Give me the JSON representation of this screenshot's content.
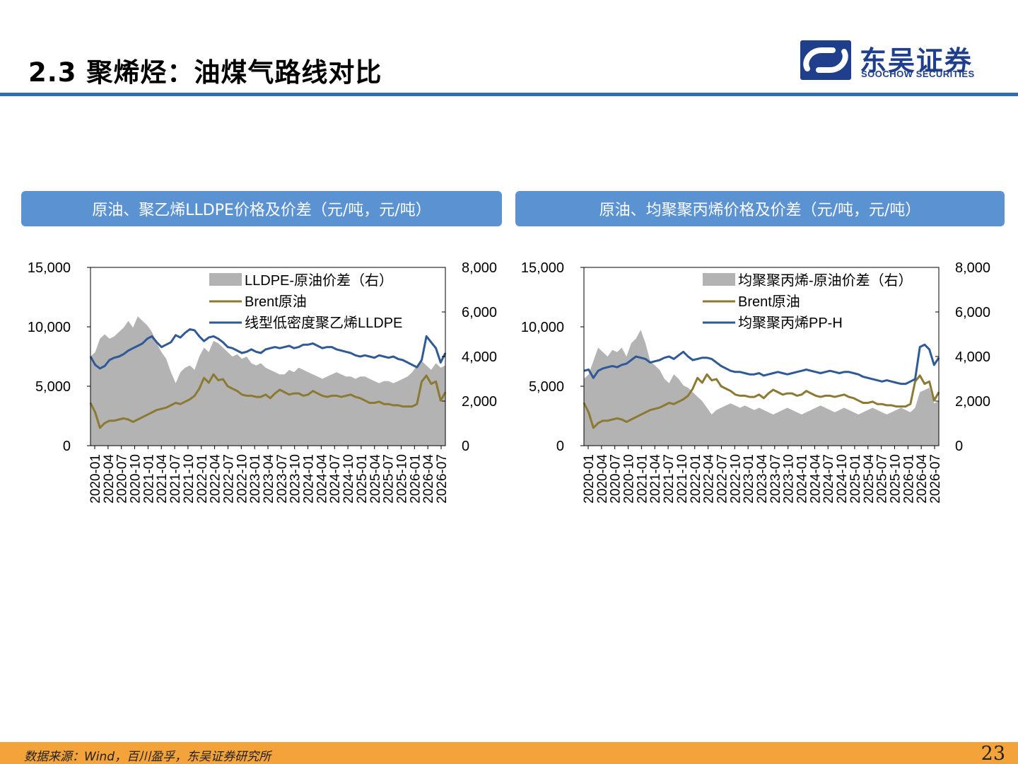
{
  "slide": {
    "title": "2.3 聚烯烃：油煤气路线对比",
    "logo_cn": "东吴证券",
    "logo_en": "SOOCHOW SECURITIES",
    "source": "数据来源：Wind，百川盈孚，东吴证券研究所",
    "page_number": "23",
    "colors": {
      "header_rule": "#2f6db5",
      "banner": "#5b92d2",
      "footer": "#f4a23a",
      "logo": "#1f3f8c"
    }
  },
  "chart_data": [
    {
      "type": "line",
      "title": "原油、聚乙烯LLDPE价格及价差（元/吨，元/吨）",
      "x_tick_labels": [
        "2020-01",
        "2020-04",
        "2020-07",
        "2020-10",
        "2021-01",
        "2021-04",
        "2021-07",
        "2021-10",
        "2022-01",
        "2022-04",
        "2022-07",
        "2022-10",
        "2023-01",
        "2023-04",
        "2023-07",
        "2023-10",
        "2024-01",
        "2024-04",
        "2024-07",
        "2024-10",
        "2025-01",
        "2025-04",
        "2025-07",
        "2025-10",
        "2026-01",
        "2026-04",
        "2026-07"
      ],
      "y_left_ticks": [
        "0",
        "5,000",
        "10,000",
        "15,000"
      ],
      "y_right_ticks": [
        "0",
        "2,000",
        "4,000",
        "6,000",
        "8,000"
      ],
      "ylim_left": [
        0,
        15000
      ],
      "ylim_right": [
        0,
        8000
      ],
      "legend_position": "top-right",
      "grid": false,
      "series": [
        {
          "name": "LLDPE-原油价差（右）",
          "kind": "area",
          "axis": "right",
          "color": "#b3b3b3",
          "values": [
            4000,
            4200,
            4800,
            5000,
            4800,
            4900,
            5100,
            5300,
            5600,
            5300,
            5800,
            5600,
            5400,
            5100,
            4600,
            4200,
            3900,
            3300,
            2800,
            3300,
            3500,
            3600,
            3400,
            4000,
            4400,
            4200,
            4700,
            4600,
            4400,
            4200,
            4000,
            4100,
            3900,
            4000,
            3700,
            3600,
            3700,
            3500,
            3400,
            3300,
            3200,
            3200,
            3400,
            3300,
            3500,
            3400,
            3300,
            3200,
            3100,
            3000,
            3100,
            3200,
            3300,
            3200,
            3100,
            3100,
            3000,
            3100,
            3100,
            3000,
            2900,
            2800,
            2900,
            2900,
            2800,
            2900,
            3000,
            3100,
            3300,
            3600,
            3800,
            3600,
            3400,
            3700,
            3500,
            3600
          ]
        },
        {
          "name": "Brent原油",
          "kind": "line",
          "axis": "left",
          "color": "#8c7a34",
          "values": [
            3600,
            2800,
            1500,
            1900,
            2100,
            2100,
            2200,
            2300,
            2200,
            2000,
            2200,
            2400,
            2600,
            2800,
            3000,
            3100,
            3200,
            3400,
            3600,
            3500,
            3700,
            3900,
            4200,
            4800,
            5700,
            5300,
            6000,
            5500,
            5600,
            5000,
            4800,
            4600,
            4300,
            4200,
            4200,
            4100,
            4100,
            4300,
            4000,
            4400,
            4700,
            4500,
            4300,
            4400,
            4400,
            4200,
            4300,
            4600,
            4400,
            4200,
            4100,
            4200,
            4200,
            4100,
            4200,
            4300,
            4100,
            4000,
            3800,
            3600,
            3600,
            3700,
            3500,
            3500,
            3400,
            3400,
            3300,
            3300,
            3300,
            3500,
            5400,
            5900,
            5200,
            5400,
            3800,
            4500
          ]
        },
        {
          "name": "线型低密度聚乙烯LLDPE",
          "kind": "line",
          "axis": "left",
          "color": "#2f5a97",
          "values": [
            7500,
            6800,
            6500,
            6700,
            7200,
            7400,
            7500,
            7700,
            8000,
            8200,
            8400,
            8600,
            9000,
            9200,
            8700,
            8300,
            8500,
            8700,
            9300,
            9100,
            9500,
            9800,
            9700,
            9200,
            8800,
            9100,
            9200,
            9000,
            8700,
            8300,
            8200,
            8000,
            7800,
            7900,
            8100,
            7900,
            7800,
            8100,
            8200,
            8300,
            8200,
            8300,
            8400,
            8200,
            8300,
            8500,
            8500,
            8600,
            8400,
            8200,
            8300,
            8300,
            8100,
            8000,
            7900,
            7800,
            7600,
            7500,
            7600,
            7500,
            7400,
            7600,
            7500,
            7400,
            7500,
            7300,
            7200,
            7000,
            6800,
            6600,
            7200,
            9200,
            8700,
            8200,
            7000,
            7800
          ]
        }
      ]
    },
    {
      "type": "line",
      "title": "原油、均聚聚丙烯价格及价差（元/吨，元/吨）",
      "x_tick_labels": [
        "2020-01",
        "2020-04",
        "2020-07",
        "2020-10",
        "2021-01",
        "2021-04",
        "2021-07",
        "2021-10",
        "2022-01",
        "2022-04",
        "2022-07",
        "2022-10",
        "2023-01",
        "2023-04",
        "2023-07",
        "2023-10",
        "2024-01",
        "2024-04",
        "2024-07",
        "2024-10",
        "2025-01",
        "2025-04",
        "2025-07",
        "2025-10",
        "2026-01",
        "2026-04",
        "2026-07"
      ],
      "y_left_ticks": [
        "0",
        "5,000",
        "10,000",
        "15,000"
      ],
      "y_right_ticks": [
        "0",
        "2,000",
        "4,000",
        "6,000",
        "8,000"
      ],
      "ylim_left": [
        0,
        15000
      ],
      "ylim_right": [
        0,
        8000
      ],
      "legend_position": "top-right",
      "grid": false,
      "series": [
        {
          "name": "均聚聚丙烯-原油价差（右）",
          "kind": "area",
          "axis": "right",
          "color": "#b3b3b3",
          "values": [
            3000,
            3200,
            3800,
            4400,
            4200,
            4000,
            4300,
            4200,
            4400,
            4000,
            4600,
            4800,
            5200,
            4600,
            3800,
            3600,
            3400,
            3000,
            2800,
            3200,
            3000,
            2700,
            2600,
            2400,
            2200,
            2000,
            1700,
            1400,
            1600,
            1700,
            1800,
            1900,
            1800,
            1700,
            1800,
            1700,
            1600,
            1700,
            1600,
            1500,
            1400,
            1500,
            1600,
            1700,
            1600,
            1500,
            1400,
            1500,
            1600,
            1700,
            1800,
            1700,
            1600,
            1500,
            1600,
            1700,
            1600,
            1500,
            1400,
            1500,
            1600,
            1700,
            1600,
            1500,
            1400,
            1500,
            1600,
            1700,
            1600,
            1500,
            1700,
            2400,
            2500,
            2600,
            1900,
            2000
          ]
        },
        {
          "name": "Brent原油",
          "kind": "line",
          "axis": "left",
          "color": "#8c7a34",
          "values": [
            3600,
            2800,
            1500,
            1900,
            2100,
            2100,
            2200,
            2300,
            2200,
            2000,
            2200,
            2400,
            2600,
            2800,
            3000,
            3100,
            3200,
            3400,
            3600,
            3500,
            3700,
            3900,
            4200,
            4800,
            5700,
            5300,
            6000,
            5500,
            5600,
            5000,
            4800,
            4600,
            4300,
            4200,
            4200,
            4100,
            4100,
            4300,
            4000,
            4400,
            4700,
            4500,
            4300,
            4400,
            4400,
            4200,
            4300,
            4600,
            4400,
            4200,
            4100,
            4200,
            4200,
            4100,
            4200,
            4300,
            4100,
            4000,
            3800,
            3600,
            3600,
            3700,
            3500,
            3500,
            3400,
            3400,
            3300,
            3300,
            3300,
            3500,
            5400,
            5900,
            5200,
            5400,
            3800,
            4500
          ]
        },
        {
          "name": "均聚聚丙烯PP-H",
          "kind": "line",
          "axis": "left",
          "color": "#2f5a97",
          "values": [
            6300,
            6400,
            5700,
            6300,
            6500,
            6600,
            6700,
            6600,
            6800,
            6900,
            7200,
            7500,
            7400,
            7300,
            7000,
            7100,
            7200,
            7400,
            7500,
            7300,
            7600,
            7900,
            7500,
            7200,
            7300,
            7400,
            7400,
            7300,
            7000,
            6700,
            6500,
            6300,
            6200,
            6200,
            6100,
            6000,
            6000,
            6100,
            5900,
            6000,
            6100,
            6200,
            6100,
            6000,
            6100,
            6200,
            6300,
            6400,
            6300,
            6200,
            6100,
            6200,
            6300,
            6200,
            6100,
            6200,
            6200,
            6100,
            6000,
            5800,
            5700,
            5600,
            5500,
            5400,
            5500,
            5400,
            5300,
            5200,
            5200,
            5400,
            5600,
            8300,
            8500,
            8100,
            6800,
            7400
          ]
        }
      ]
    }
  ]
}
